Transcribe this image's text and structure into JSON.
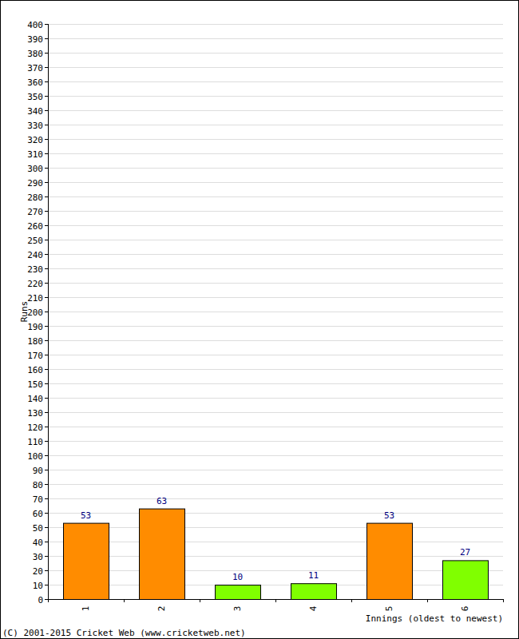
{
  "chart_data": {
    "type": "bar",
    "y_label": "Runs",
    "x_label": "Innings (oldest to newest)",
    "annotations": [
      "(C) 2001-2015 Cricket Web (www.cricketweb.net)"
    ],
    "categories": [
      "1",
      "2",
      "3",
      "4",
      "5",
      "6"
    ],
    "values": [
      53,
      63,
      10,
      11,
      53,
      27
    ],
    "colors": [
      "#ff8c00",
      "#ff8c00",
      "#80ff00",
      "#80ff00",
      "#ff8c00",
      "#80ff00"
    ],
    "ylim": [
      0,
      400
    ],
    "yticks": [
      0,
      10,
      20,
      30,
      40,
      50,
      60,
      70,
      80,
      90,
      100,
      110,
      120,
      130,
      140,
      150,
      160,
      170,
      180,
      190,
      200,
      210,
      220,
      230,
      240,
      250,
      260,
      270,
      280,
      290,
      300,
      310,
      320,
      330,
      340,
      350,
      360,
      370,
      380,
      390,
      400
    ],
    "grid": true,
    "data_labels": true
  }
}
